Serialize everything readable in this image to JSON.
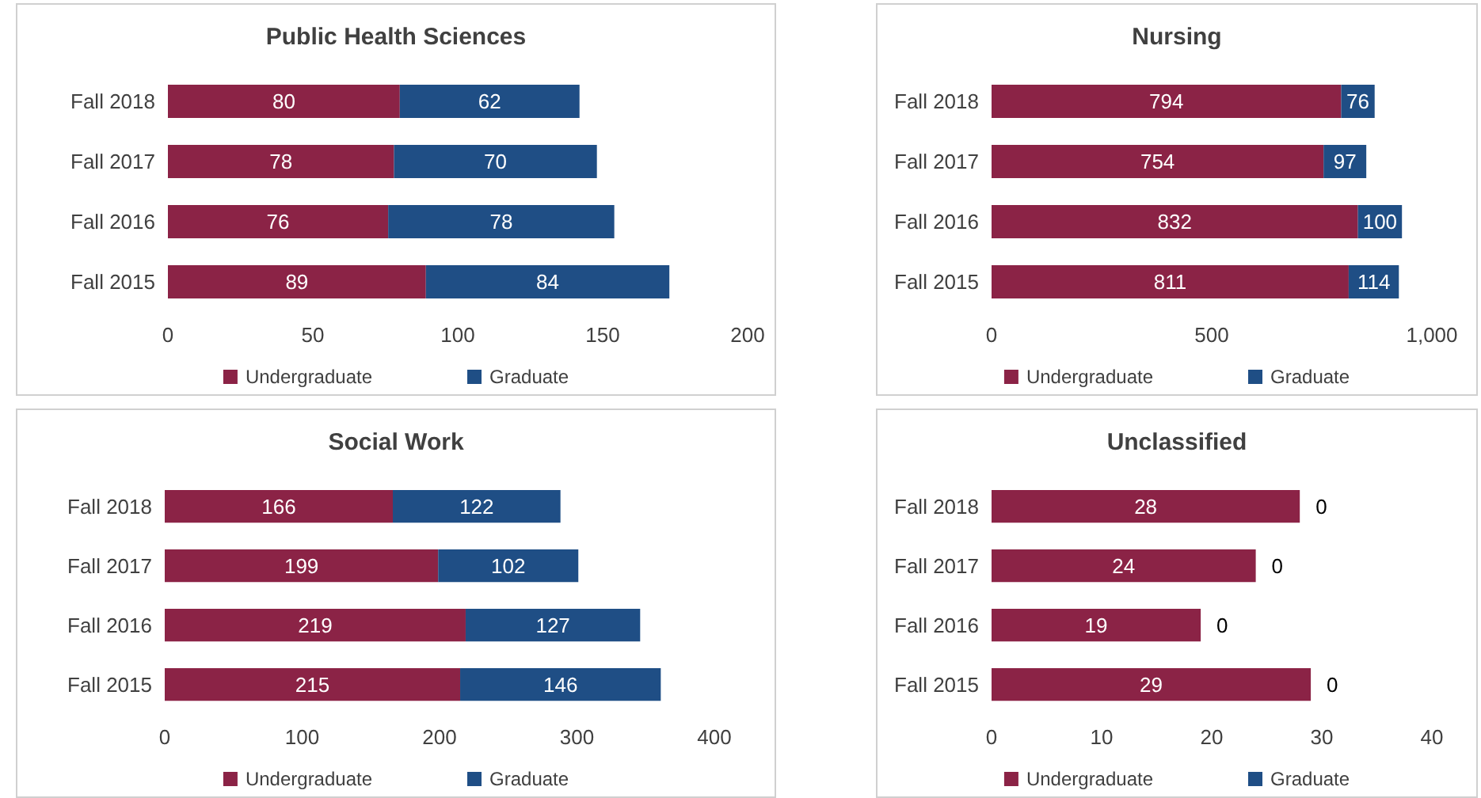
{
  "chart_data": [
    {
      "type": "bar",
      "title": "Public Health Sciences",
      "orientation": "horizontal",
      "stacked": true,
      "data_labels": true,
      "grid": false,
      "legend": "bottom",
      "categories": [
        "Fall 2018",
        "Fall 2017",
        "Fall 2016",
        "Fall 2015"
      ],
      "xlim": [
        0,
        200
      ],
      "xticks": [
        0,
        50,
        100,
        150,
        200
      ],
      "series": [
        {
          "name": "Undergraduate",
          "color": "#8b2346",
          "values": [
            80,
            78,
            76,
            89
          ]
        },
        {
          "name": "Graduate",
          "color": "#1f4e85",
          "values": [
            62,
            70,
            78,
            84
          ]
        }
      ]
    },
    {
      "type": "bar",
      "title": "Nursing",
      "orientation": "horizontal",
      "stacked": true,
      "data_labels": true,
      "grid": false,
      "legend": "bottom",
      "categories": [
        "Fall 2018",
        "Fall 2017",
        "Fall 2016",
        "Fall 2015"
      ],
      "xlim": [
        0,
        1000
      ],
      "xticks": [
        0,
        500,
        {
          "value": 1000,
          "label": "1,000"
        }
      ],
      "series": [
        {
          "name": "Undergraduate",
          "color": "#8b2346",
          "values": [
            794,
            754,
            832,
            811
          ]
        },
        {
          "name": "Graduate",
          "color": "#1f4e85",
          "values": [
            76,
            97,
            100,
            114
          ]
        }
      ]
    },
    {
      "type": "bar",
      "title": "Social Work",
      "orientation": "horizontal",
      "stacked": true,
      "data_labels": true,
      "grid": false,
      "legend": "bottom",
      "categories": [
        "Fall 2018",
        "Fall 2017",
        "Fall 2016",
        "Fall 2015"
      ],
      "xlim": [
        0,
        400
      ],
      "xticks": [
        0,
        100,
        200,
        300,
        400
      ],
      "series": [
        {
          "name": "Undergraduate",
          "color": "#8b2346",
          "values": [
            166,
            199,
            219,
            215
          ]
        },
        {
          "name": "Graduate",
          "color": "#1f4e85",
          "values": [
            122,
            102,
            127,
            146
          ]
        }
      ]
    },
    {
      "type": "bar",
      "title": "Unclassified",
      "orientation": "horizontal",
      "stacked": true,
      "data_labels": true,
      "grid": false,
      "legend": "bottom",
      "categories": [
        "Fall 2018",
        "Fall 2017",
        "Fall 2016",
        "Fall 2015"
      ],
      "xlim": [
        0,
        40
      ],
      "xticks": [
        0,
        10,
        20,
        30,
        40
      ],
      "series": [
        {
          "name": "Undergraduate",
          "color": "#8b2346",
          "values": [
            28,
            24,
            19,
            29
          ]
        },
        {
          "name": "Graduate",
          "color": "#1f4e85",
          "values": [
            0,
            0,
            0,
            0
          ]
        }
      ]
    }
  ]
}
